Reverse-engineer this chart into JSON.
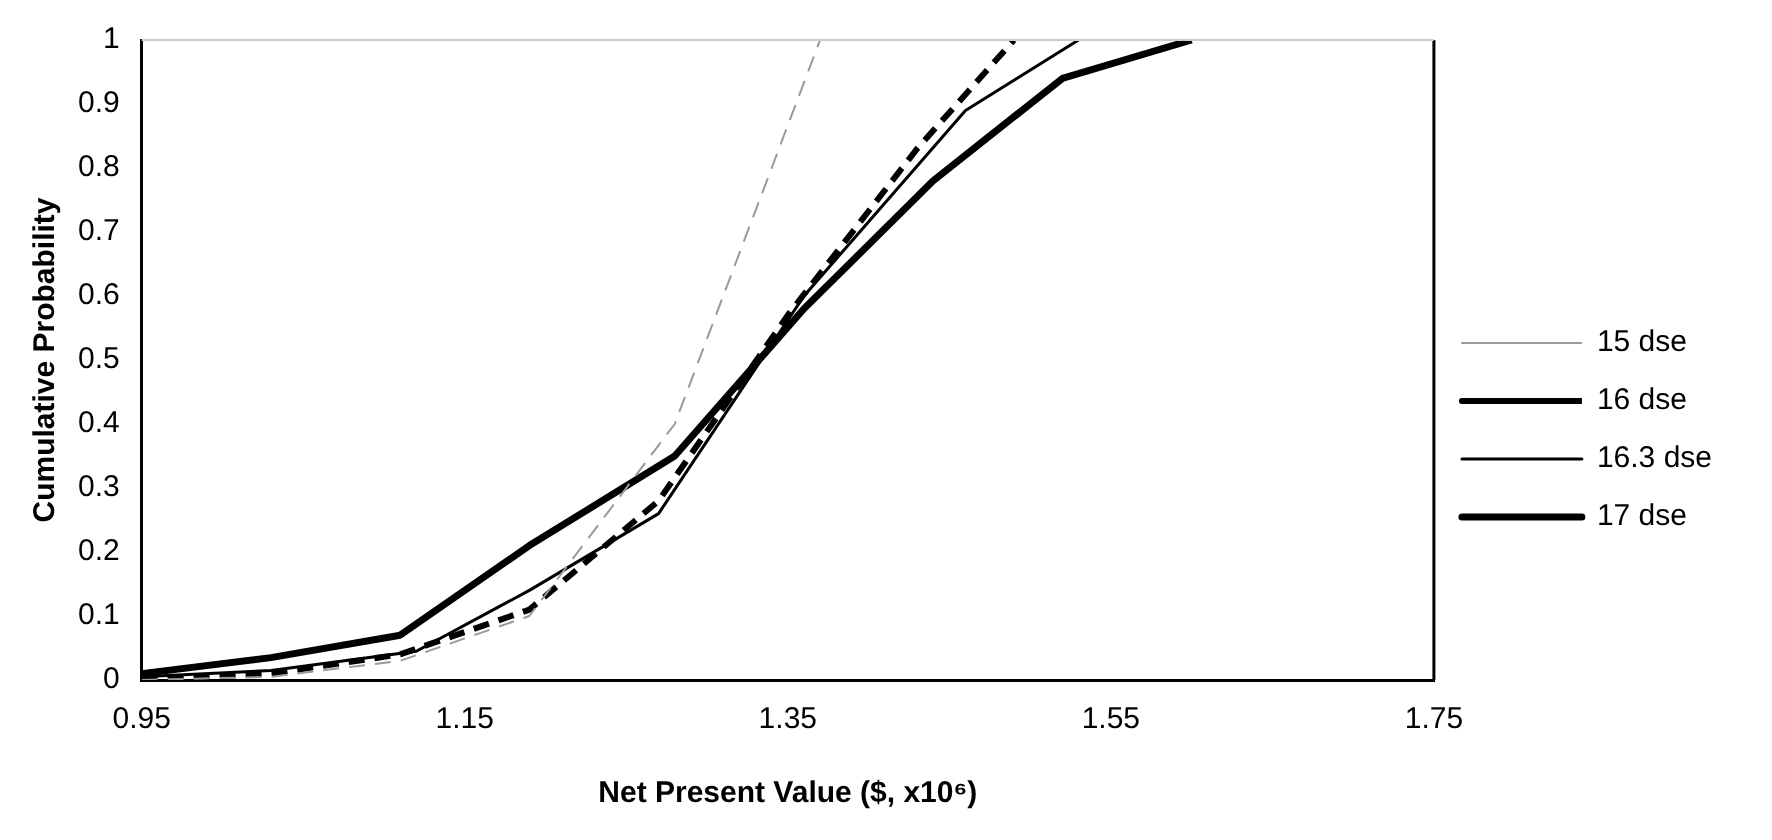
{
  "chart_data": {
    "type": "line",
    "xlabel": "Net Present Value ($, x10⁶)",
    "ylabel": "Cumulative Probability",
    "xlim": [
      0.95,
      1.75
    ],
    "xticks": [
      0.95,
      1.15,
      1.35,
      1.55,
      1.75
    ],
    "ylim": [
      0,
      1
    ],
    "yticks": [
      0,
      0.1,
      0.2,
      0.3,
      0.4,
      0.5,
      0.6,
      0.7,
      0.8,
      0.9,
      1
    ],
    "grid": false,
    "legend": "right",
    "marker": "none",
    "series": [
      {
        "name": "15 dse",
        "color": "#999999",
        "line_style": "dashed",
        "x": [
          0.95,
          1.03,
          1.11,
          1.19,
          1.28,
          1.37
        ],
        "values": [
          0,
          0.005,
          0.03,
          0.1,
          0.4,
          1
        ]
      },
      {
        "name": "16 dse",
        "color": "#000000",
        "line_style": "dashed",
        "x": [
          0.95,
          1.03,
          1.11,
          1.19,
          1.27,
          1.35,
          1.43,
          1.49
        ],
        "values": [
          0,
          0.01,
          0.04,
          0.11,
          0.28,
          0.57,
          0.83,
          1
        ]
      },
      {
        "name": "16.3 dse",
        "color": "#000000",
        "line_style": "solid",
        "x": [
          0.95,
          1.03,
          1.12,
          1.19,
          1.27,
          1.36,
          1.46,
          1.53
        ],
        "values": [
          0.005,
          0.015,
          0.045,
          0.14,
          0.26,
          0.6,
          0.89,
          1
        ]
      },
      {
        "name": "17 dse",
        "color": "#000000",
        "line_style": "solid",
        "x": [
          0.95,
          1.03,
          1.11,
          1.19,
          1.28,
          1.36,
          1.44,
          1.52,
          1.6
        ],
        "values": [
          0.01,
          0.035,
          0.07,
          0.21,
          0.35,
          0.58,
          0.78,
          0.94,
          1
        ]
      }
    ]
  }
}
